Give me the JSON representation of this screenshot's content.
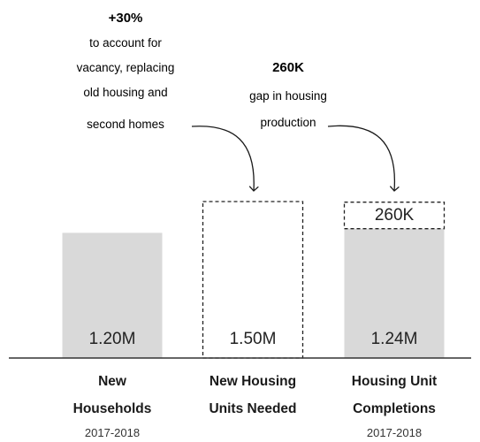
{
  "chart_data": {
    "type": "bar",
    "categories": [
      "New Households",
      "New Housing Units Needed",
      "Housing Unit Completions"
    ],
    "category_lines": [
      [
        "New",
        "Households"
      ],
      [
        "New Housing",
        "Units Needed"
      ],
      [
        "Housing Unit",
        "Completions"
      ]
    ],
    "subtitles": [
      "2017-2018",
      "",
      "2017-2018"
    ],
    "values": [
      1.2,
      1.5,
      1.24
    ],
    "value_labels": [
      "1.20M",
      "1.50M",
      "1.24M"
    ],
    "bar_styles": [
      "solid",
      "dashed",
      "solid"
    ],
    "gap": {
      "value": 0.26,
      "label": "260K"
    },
    "ylim": [
      0,
      1.5
    ],
    "colors": {
      "bar_fill": "#d9d9d9",
      "dashed_outline": "#222222",
      "axis": "#333333",
      "arrow": "#1a1a1a"
    },
    "annotations": [
      {
        "id": "vacancy",
        "headline": "+30%",
        "lines": [
          "to account for",
          "vacancy, replacing",
          "old housing and",
          "second homes"
        ]
      },
      {
        "id": "gap",
        "headline": "260K",
        "lines": [
          "gap in housing",
          "production"
        ]
      }
    ]
  }
}
